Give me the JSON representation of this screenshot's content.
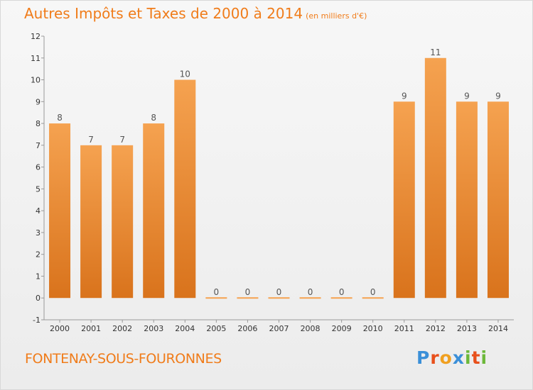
{
  "title": "Autres Impôts et Taxes de 2000 à 2014",
  "unit": "(en milliers d'€)",
  "commune": "FONTENAY-SOUS-FOURONNES",
  "logo": {
    "letters": [
      "P",
      "r",
      "o",
      "x",
      "i",
      "t",
      "i"
    ],
    "colors": [
      "#3a8fd8",
      "#e8501c",
      "#f0a020",
      "#3a8fd8",
      "#6cb83a",
      "#e8501c",
      "#6cb83a"
    ]
  },
  "colors": {
    "bar_top": "#f5a250",
    "bar_bottom": "#d9731c",
    "text": "#f07c1a"
  },
  "chart_data": {
    "type": "bar",
    "categories": [
      "2000",
      "2001",
      "2002",
      "2003",
      "2004",
      "2005",
      "2006",
      "2007",
      "2008",
      "2009",
      "2010",
      "2011",
      "2012",
      "2013",
      "2014"
    ],
    "values": [
      8,
      7,
      7,
      8,
      10,
      0,
      0,
      0,
      0,
      0,
      0,
      9,
      11,
      9,
      9
    ],
    "title": "Autres Impôts et Taxes de 2000 à 2014",
    "ylim": [
      -1,
      12
    ],
    "yticks": [
      "-1",
      "0",
      "1",
      "2",
      "3",
      "4",
      "5",
      "6",
      "7",
      "8",
      "9",
      "10",
      "11",
      "12"
    ],
    "grid": false
  }
}
